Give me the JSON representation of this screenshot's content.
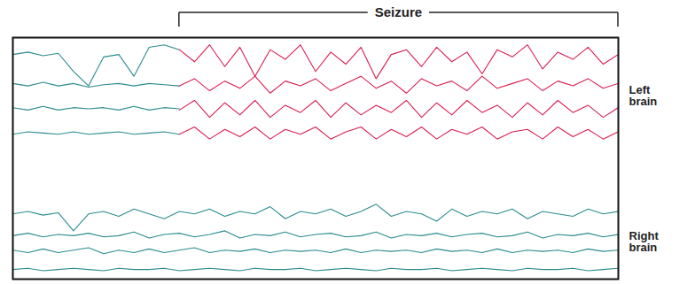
{
  "chart_data": {
    "type": "line",
    "tick_labels": false,
    "x": [
      0,
      2.5,
      5,
      7.5,
      10,
      12.5,
      15,
      17.5,
      20,
      22.5,
      25,
      27.5,
      30,
      32.5,
      35,
      37.5,
      40,
      42.5,
      45,
      47.5,
      50,
      52.5,
      55,
      57.5,
      60,
      62.5,
      65,
      67.5,
      70,
      72.5,
      75,
      77.5,
      80,
      82.5,
      85,
      87.5,
      90,
      92.5,
      95,
      97.5,
      100
    ],
    "xlim": [
      0,
      100
    ],
    "ylim": [
      0,
      100
    ],
    "annotations": [
      {
        "text": "Seizure",
        "x": [
          27.5,
          100
        ]
      }
    ],
    "groups": [
      {
        "label": "Left brain",
        "series": [
          {
            "color": "#2b8c8f",
            "values": [
              93,
              94,
              92.5,
              93.5,
              86,
              80,
              92,
              93,
              84,
              96,
              97,
              95,
              null,
              null,
              null,
              null,
              null,
              null,
              null,
              null,
              null,
              null,
              null,
              null,
              null,
              null,
              null,
              null,
              null,
              null,
              null,
              null,
              null,
              null,
              null,
              null,
              null,
              null,
              null,
              null,
              null
            ]
          },
          {
            "color": "#d91e4f",
            "values": [
              null,
              null,
              null,
              null,
              null,
              null,
              null,
              null,
              null,
              null,
              null,
              95,
              90,
              97,
              88,
              96,
              84,
              95,
              91,
              97,
              86,
              94,
              89,
              96,
              83,
              93,
              95,
              88,
              96,
              90,
              94,
              85,
              95,
              92,
              97,
              87,
              94,
              91,
              96,
              89,
              93
            ]
          },
          {
            "color": "#2b8c8f",
            "values": [
              81,
              80,
              81.5,
              80,
              81,
              79.5,
              80.5,
              81,
              80,
              81,
              80.5,
              80,
              null,
              null,
              null,
              null,
              null,
              null,
              null,
              null,
              null,
              null,
              null,
              null,
              null,
              null,
              null,
              null,
              null,
              null,
              null,
              null,
              null,
              null,
              null,
              null,
              null,
              null,
              null,
              null,
              null
            ]
          },
          {
            "color": "#d91e4f",
            "values": [
              null,
              null,
              null,
              null,
              null,
              null,
              null,
              null,
              null,
              null,
              null,
              80,
              83,
              78,
              82,
              79,
              84,
              77,
              82,
              80,
              83,
              78,
              81,
              84,
              79,
              82,
              77,
              83,
              80,
              82,
              78,
              84,
              79,
              81,
              83,
              78,
              82,
              80,
              83,
              79,
              81
            ]
          },
          {
            "color": "#2b8c8f",
            "values": [
              71,
              70,
              71.5,
              70,
              71,
              70.5,
              71,
              70,
              71.5,
              70,
              71,
              70.5,
              null,
              null,
              null,
              null,
              null,
              null,
              null,
              null,
              null,
              null,
              null,
              null,
              null,
              null,
              null,
              null,
              null,
              null,
              null,
              null,
              null,
              null,
              null,
              null,
              null,
              null,
              null,
              null,
              null
            ]
          },
          {
            "color": "#d91e4f",
            "values": [
              null,
              null,
              null,
              null,
              null,
              null,
              null,
              null,
              null,
              null,
              null,
              70,
              74,
              67,
              73,
              68,
              74,
              67,
              72,
              69,
              74,
              67,
              73,
              68,
              72,
              69,
              74,
              67,
              73,
              68,
              74,
              69,
              72,
              67,
              73,
              68,
              74,
              69,
              72,
              67,
              71
            ]
          },
          {
            "color": "#2b8c8f",
            "values": [
              60,
              61,
              60.5,
              60,
              61,
              60,
              60.5,
              61,
              60,
              60.5,
              61,
              60,
              null,
              null,
              null,
              null,
              null,
              null,
              null,
              null,
              null,
              null,
              null,
              null,
              null,
              null,
              null,
              null,
              null,
              null,
              null,
              null,
              null,
              null,
              null,
              null,
              null,
              null,
              null,
              null,
              null
            ]
          },
          {
            "color": "#d91e4f",
            "values": [
              null,
              null,
              null,
              null,
              null,
              null,
              null,
              null,
              null,
              null,
              null,
              60,
              63,
              58,
              62,
              59,
              63,
              58,
              62,
              60,
              63,
              58,
              61,
              63,
              58,
              62,
              59,
              63,
              58,
              62,
              60,
              63,
              58,
              61,
              62,
              58,
              63,
              59,
              62,
              58,
              61
            ]
          }
        ]
      },
      {
        "label": "Right brain",
        "series": [
          {
            "color": "#2b8c8f",
            "values": [
              27,
              28,
              26.5,
              27.5,
              20,
              27,
              28,
              26,
              29,
              27,
              25,
              28,
              27,
              29,
              26,
              28,
              27,
              30,
              25,
              28,
              27,
              29,
              26,
              28,
              31,
              26,
              28,
              27,
              24,
              29,
              26,
              28,
              27,
              29,
              25,
              28,
              27,
              26,
              29,
              27,
              28
            ]
          },
          {
            "color": "#2b8c8f",
            "values": [
              18,
              19,
              17.5,
              18.5,
              18,
              19,
              17.5,
              18,
              19.5,
              17,
              18.5,
              19,
              17.5,
              18.5,
              20,
              17,
              18.5,
              18,
              19.5,
              17.5,
              18.5,
              19,
              17.5,
              18,
              19.5,
              17,
              18.5,
              18,
              19,
              17.5,
              18.5,
              19,
              17.5,
              18,
              19.5,
              17,
              18.5,
              18,
              19,
              17.5,
              18.5
            ]
          },
          {
            "color": "#2b8c8f",
            "values": [
              12,
              11,
              12.5,
              11,
              12,
              13,
              10.5,
              12,
              11,
              12.5,
              11,
              12,
              13,
              11,
              12,
              11.5,
              12.5,
              11,
              12,
              11.5,
              12,
              11,
              12.5,
              11,
              12,
              11.5,
              12,
              11,
              12.5,
              11.5,
              12,
              11,
              12.5,
              11,
              12,
              11.5,
              12,
              11,
              12.5,
              11.5,
              12
            ]
          },
          {
            "color": "#2b8c8f",
            "values": [
              4,
              4.5,
              3.5,
              4,
              4.5,
              4,
              3.5,
              4.5,
              4,
              4,
              4.5,
              3.5,
              4,
              4.5,
              4,
              3.5,
              4.5,
              4,
              4,
              4.5,
              3.5,
              4,
              4.5,
              4,
              3.5,
              4.5,
              4,
              4,
              4.5,
              3.5,
              4,
              4.5,
              4,
              3.5,
              4.5,
              4,
              4,
              4.5,
              3.5,
              4,
              4.5
            ]
          }
        ]
      }
    ]
  }
}
